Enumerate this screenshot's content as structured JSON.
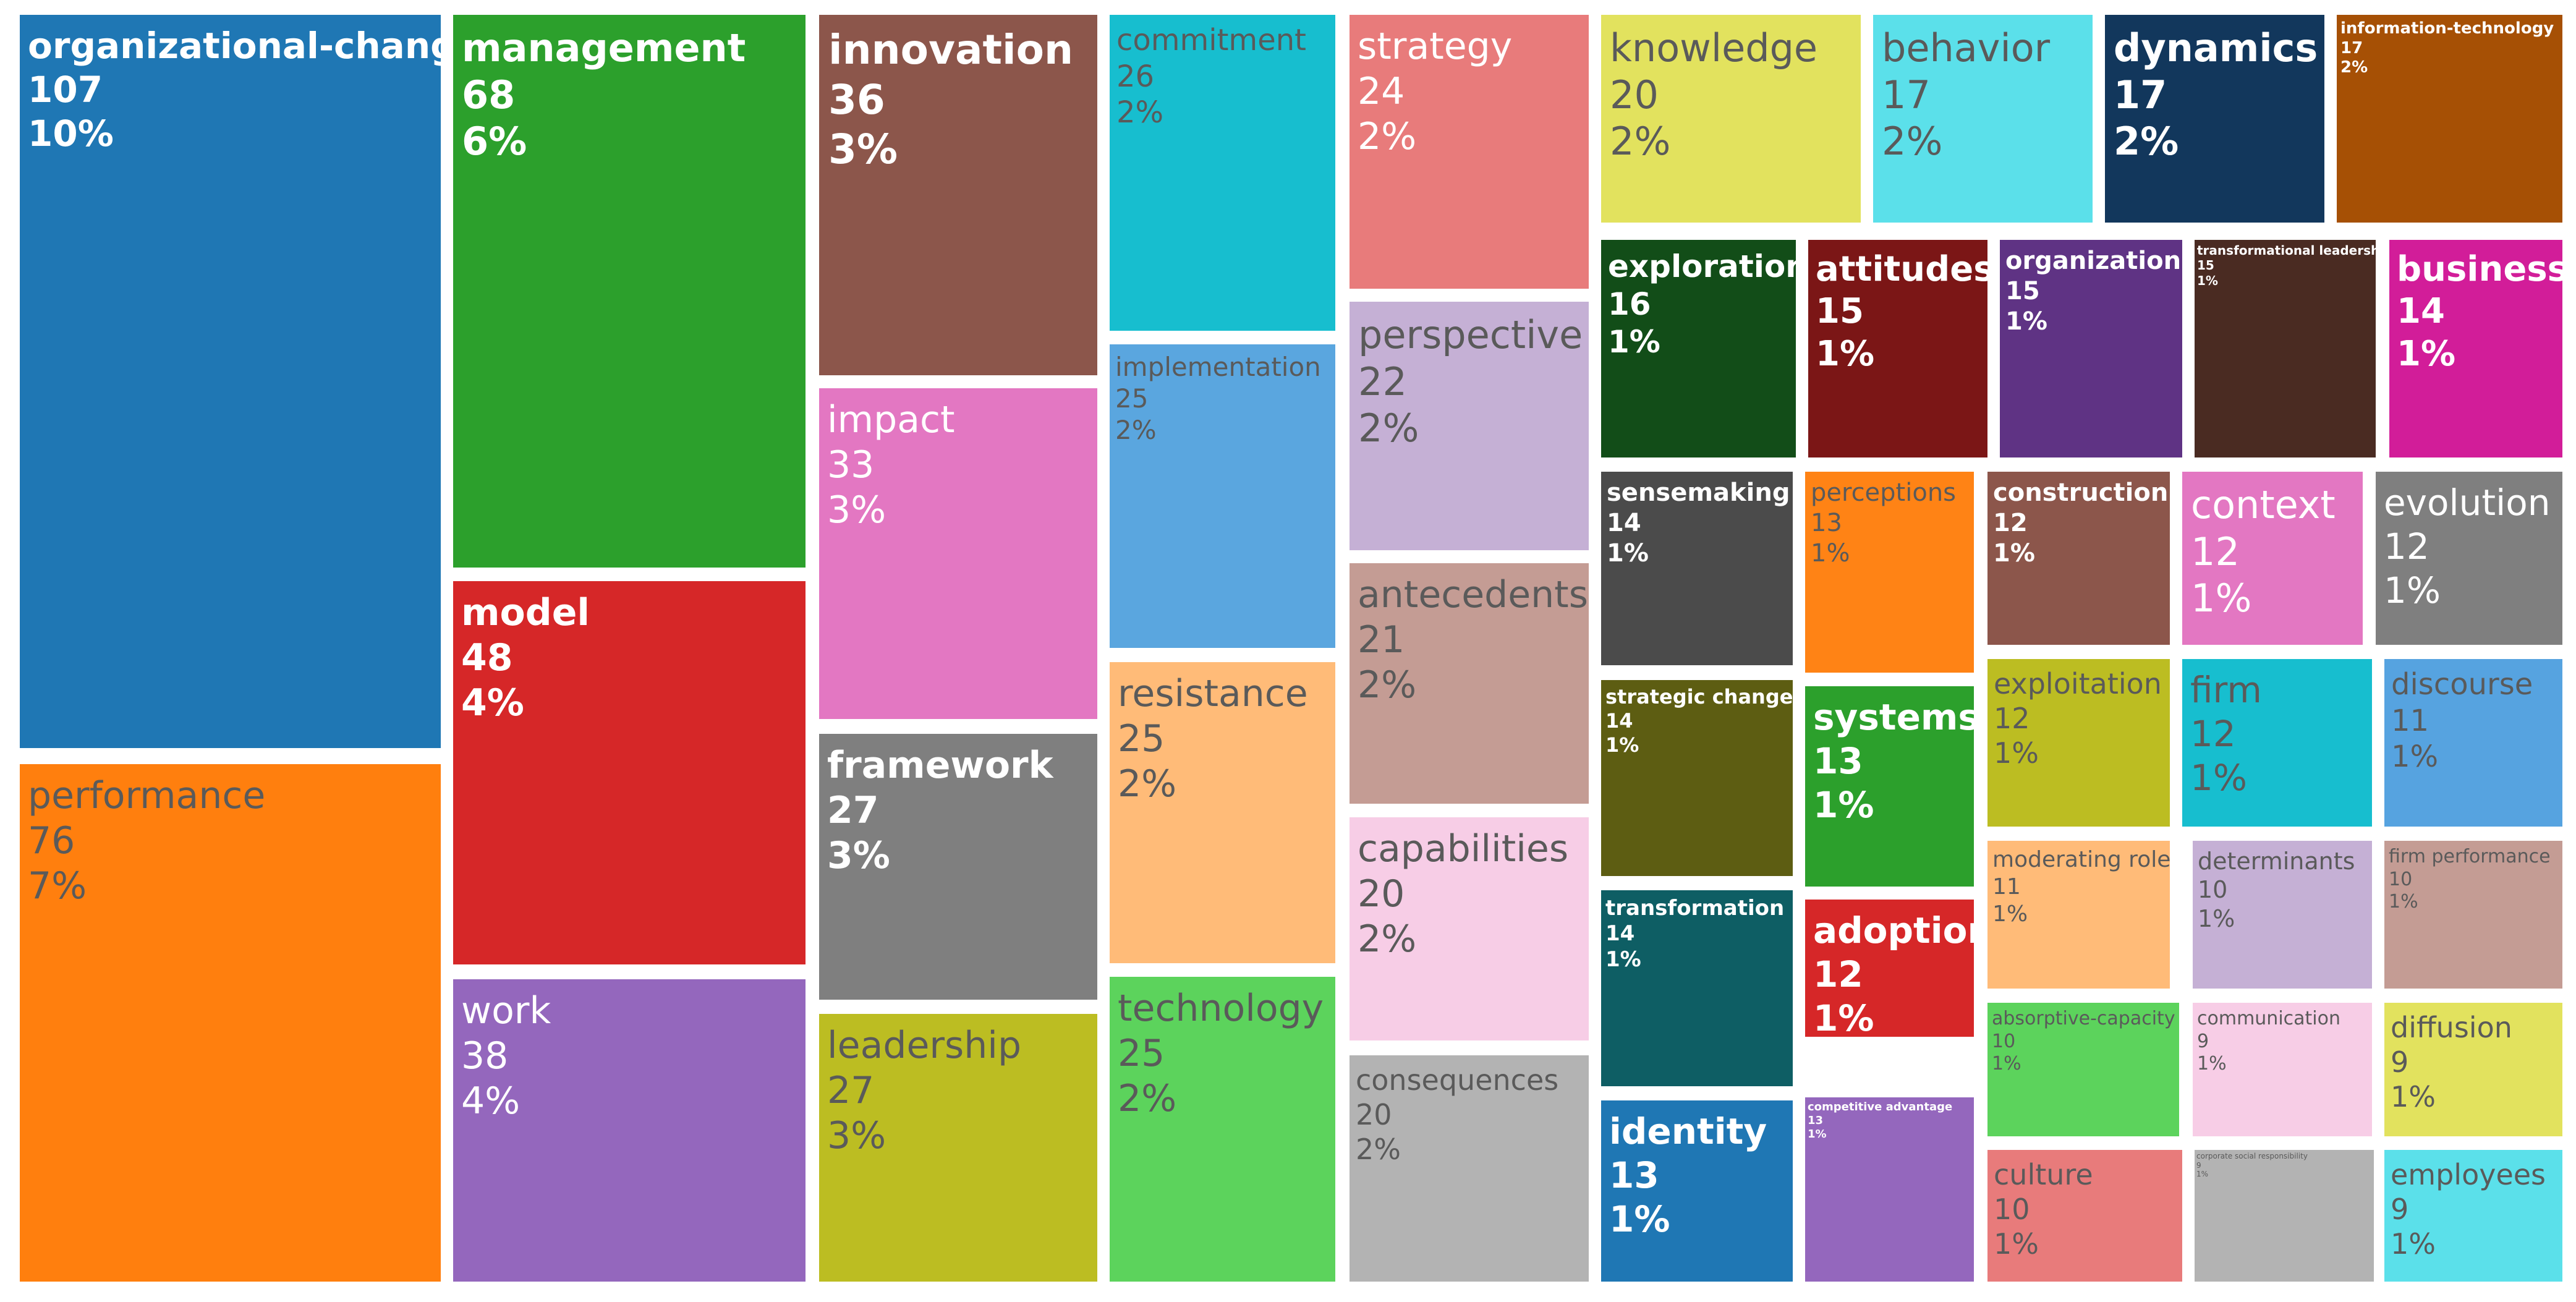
{
  "chart_data": {
    "type": "treemap",
    "title": "",
    "items": [
      {
        "label": "organizational-change",
        "value": 107,
        "percent": "10%",
        "color": "#1f77b4"
      },
      {
        "label": "performance",
        "value": 76,
        "percent": "7%",
        "color": "#ff7f0e"
      },
      {
        "label": "management",
        "value": 68,
        "percent": "6%",
        "color": "#2ca02c"
      },
      {
        "label": "model",
        "value": 48,
        "percent": "4%",
        "color": "#d62728"
      },
      {
        "label": "work",
        "value": 38,
        "percent": "4%",
        "color": "#9467bd"
      },
      {
        "label": "innovation",
        "value": 36,
        "percent": "3%",
        "color": "#8c564b"
      },
      {
        "label": "impact",
        "value": 33,
        "percent": "3%",
        "color": "#e377c2"
      },
      {
        "label": "framework",
        "value": 27,
        "percent": "3%",
        "color": "#7f7f7f"
      },
      {
        "label": "leadership",
        "value": 27,
        "percent": "3%",
        "color": "#bcbd22"
      },
      {
        "label": "commitment",
        "value": 26,
        "percent": "2%",
        "color": "#17becf"
      },
      {
        "label": "implementation",
        "value": 25,
        "percent": "2%",
        "color": "#5aa6df"
      },
      {
        "label": "resistance",
        "value": 25,
        "percent": "2%",
        "color": "#ffbb78"
      },
      {
        "label": "technology",
        "value": 25,
        "percent": "2%",
        "color": "#5cd35c"
      },
      {
        "label": "strategy",
        "value": 24,
        "percent": "2%",
        "color": "#e87b7b"
      },
      {
        "label": "perspective",
        "value": 22,
        "percent": "2%",
        "color": "#c5b0d5"
      },
      {
        "label": "antecedents",
        "value": 21,
        "percent": "2%",
        "color": "#c49c94"
      },
      {
        "label": "capabilities",
        "value": 20,
        "percent": "2%",
        "color": "#f7cde6"
      },
      {
        "label": "consequences",
        "value": 20,
        "percent": "2%",
        "color": "#b3b3b3"
      },
      {
        "label": "knowledge",
        "value": 20,
        "percent": "2%",
        "color": "#e2e25e"
      },
      {
        "label": "behavior",
        "value": 17,
        "percent": "2%",
        "color": "#5be0ea"
      },
      {
        "label": "dynamics",
        "value": 17,
        "percent": "2%",
        "color": "#12375c"
      },
      {
        "label": "information-technology",
        "value": 17,
        "percent": "2%",
        "color": "#a65005"
      },
      {
        "label": "exploration",
        "value": 16,
        "percent": "1%",
        "color": "#124d18"
      },
      {
        "label": "attitudes",
        "value": 15,
        "percent": "1%",
        "color": "#7b1616"
      },
      {
        "label": "organizations",
        "value": 15,
        "percent": "1%",
        "color": "#5f3384"
      },
      {
        "label": "transformational leadership",
        "value": 15,
        "percent": "1%",
        "color": "#4a2b22"
      },
      {
        "label": "business",
        "value": 14,
        "percent": "1%",
        "color": "#d21d99"
      },
      {
        "label": "sensemaking",
        "value": 14,
        "percent": "1%",
        "color": "#4b4b4b"
      },
      {
        "label": "perceptions",
        "value": 13,
        "percent": "1%",
        "color": "#ff8315"
      },
      {
        "label": "construction",
        "value": 12,
        "percent": "1%",
        "color": "#8c564b"
      },
      {
        "label": "context",
        "value": 12,
        "percent": "1%",
        "color": "#e377c2"
      },
      {
        "label": "evolution",
        "value": 12,
        "percent": "1%",
        "color": "#7f7f7f"
      },
      {
        "label": "strategic change",
        "value": 14,
        "percent": "1%",
        "color": "#5d5d12"
      },
      {
        "label": "systems",
        "value": 13,
        "percent": "1%",
        "color": "#2ca02c"
      },
      {
        "label": "exploitation",
        "value": 12,
        "percent": "1%",
        "color": "#bcbd22"
      },
      {
        "label": "firm",
        "value": 12,
        "percent": "1%",
        "color": "#17becf"
      },
      {
        "label": "discourse",
        "value": 11,
        "percent": "1%",
        "color": "#56a3e0"
      },
      {
        "label": "transformation",
        "value": 14,
        "percent": "1%",
        "color": "#0e5e64"
      },
      {
        "label": "adoption",
        "value": 12,
        "percent": "1%",
        "color": "#d62728"
      },
      {
        "label": "moderating role",
        "value": 11,
        "percent": "1%",
        "color": "#ffbb78"
      },
      {
        "label": "determinants",
        "value": 10,
        "percent": "1%",
        "color": "#c5b0d5"
      },
      {
        "label": "firm performance",
        "value": 10,
        "percent": "1%",
        "color": "#c49c94"
      },
      {
        "label": "identity",
        "value": 13,
        "percent": "1%",
        "color": "#1f77b4"
      },
      {
        "label": "competitive advantage",
        "value": 13,
        "percent": "1%",
        "color": "#9467bd"
      },
      {
        "label": "absorptive-capacity",
        "value": 10,
        "percent": "1%",
        "color": "#5cd35c"
      },
      {
        "label": "communication",
        "value": 9,
        "percent": "1%",
        "color": "#f7cde6"
      },
      {
        "label": "diffusion",
        "value": 9,
        "percent": "1%",
        "color": "#e2e25e"
      },
      {
        "label": "culture",
        "value": 10,
        "percent": "1%",
        "color": "#e87b7b"
      },
      {
        "label": "corporate social responsibility",
        "value": 9,
        "percent": "1%",
        "color": "#b3b3b3"
      },
      {
        "label": "employees",
        "value": 9,
        "percent": "1%",
        "color": "#5be0ea"
      }
    ]
  }
}
